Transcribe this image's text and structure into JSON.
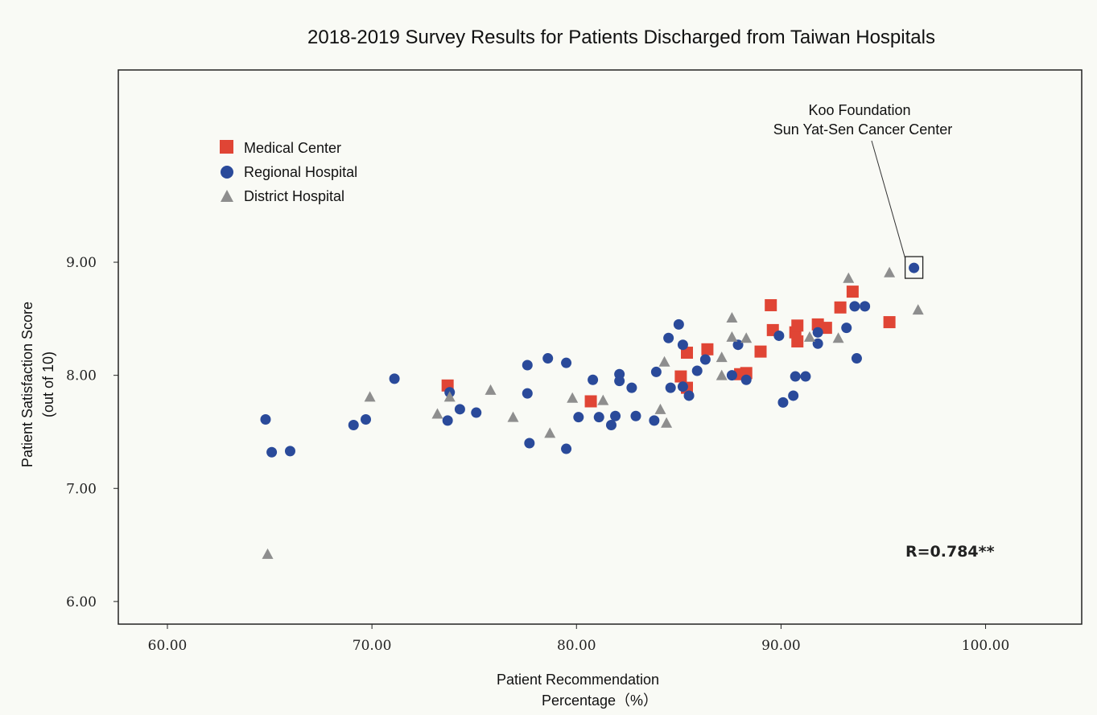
{
  "chart_data": {
    "type": "scatter",
    "title": "2018-2019 Survey Results for Patients Discharged from Taiwan Hospitals",
    "xlabel_line1": "Patient Recommendation",
    "xlabel_line2": "Percentage（%）",
    "ylabel_line1": "Patient Satisfaction Score",
    "ylabel_line2": "(out of 10)",
    "xlim": [
      57.6,
      104.7
    ],
    "ylim": [
      5.8,
      10.7
    ],
    "x_ticks": [
      60,
      70,
      80,
      90,
      100
    ],
    "x_tick_labels": [
      "60.00",
      "70.00",
      "80.00",
      "90.00",
      "100.00"
    ],
    "y_ticks": [
      6,
      7,
      8,
      9
    ],
    "y_tick_labels": [
      "6.00",
      "7.00",
      "8.00",
      "9.00"
    ],
    "grid": false,
    "legend_position": "top-left",
    "annotation": {
      "line1": "Koo Foundation",
      "line2": "Sun Yat-Sen Cancer Center",
      "point": [
        96.5,
        8.95
      ]
    },
    "r_value": "R=0.784**",
    "series": [
      {
        "name": "Medical Center",
        "marker": "square",
        "color": "#e04535",
        "points": [
          [
            73.7,
            7.91
          ],
          [
            80.7,
            7.77
          ],
          [
            85.1,
            7.99
          ],
          [
            85.4,
            8.2
          ],
          [
            85.4,
            7.89
          ],
          [
            86.4,
            8.23
          ],
          [
            88.0,
            8.01
          ],
          [
            88.3,
            8.02
          ],
          [
            89.0,
            8.21
          ],
          [
            89.5,
            8.62
          ],
          [
            89.6,
            8.4
          ],
          [
            90.7,
            8.38
          ],
          [
            90.8,
            8.3
          ],
          [
            90.8,
            8.44
          ],
          [
            91.8,
            8.45
          ],
          [
            92.2,
            8.42
          ],
          [
            92.9,
            8.6
          ],
          [
            93.5,
            8.74
          ],
          [
            95.3,
            8.47
          ]
        ]
      },
      {
        "name": "Regional Hospital",
        "marker": "circle",
        "color": "#2a4a9a",
        "points": [
          [
            64.8,
            7.61
          ],
          [
            65.1,
            7.32
          ],
          [
            66.0,
            7.33
          ],
          [
            69.1,
            7.56
          ],
          [
            69.7,
            7.61
          ],
          [
            71.1,
            7.97
          ],
          [
            73.7,
            7.6
          ],
          [
            73.8,
            7.85
          ],
          [
            74.3,
            7.7
          ],
          [
            75.1,
            7.67
          ],
          [
            77.6,
            8.09
          ],
          [
            77.6,
            7.84
          ],
          [
            77.7,
            7.4
          ],
          [
            78.6,
            8.15
          ],
          [
            79.5,
            8.11
          ],
          [
            79.5,
            7.35
          ],
          [
            80.1,
            7.63
          ],
          [
            80.8,
            7.96
          ],
          [
            81.1,
            7.63
          ],
          [
            81.7,
            7.56
          ],
          [
            81.9,
            7.64
          ],
          [
            82.1,
            8.01
          ],
          [
            82.1,
            7.95
          ],
          [
            82.7,
            7.89
          ],
          [
            82.9,
            7.64
          ],
          [
            83.8,
            7.6
          ],
          [
            83.9,
            8.03
          ],
          [
            84.5,
            8.33
          ],
          [
            84.6,
            7.89
          ],
          [
            85.0,
            8.45
          ],
          [
            85.2,
            8.27
          ],
          [
            85.2,
            7.9
          ],
          [
            85.5,
            7.82
          ],
          [
            85.9,
            8.04
          ],
          [
            86.3,
            8.14
          ],
          [
            87.6,
            8.0
          ],
          [
            87.9,
            8.27
          ],
          [
            88.3,
            7.96
          ],
          [
            89.9,
            8.35
          ],
          [
            90.1,
            7.76
          ],
          [
            90.6,
            7.82
          ],
          [
            90.7,
            7.99
          ],
          [
            91.2,
            7.99
          ],
          [
            91.8,
            8.38
          ],
          [
            91.8,
            8.28
          ],
          [
            93.2,
            8.42
          ],
          [
            93.6,
            8.61
          ],
          [
            93.7,
            8.15
          ],
          [
            94.1,
            8.61
          ],
          [
            96.5,
            8.95
          ]
        ]
      },
      {
        "name": "District Hospital",
        "marker": "triangle",
        "color": "#8e8e8e",
        "points": [
          [
            64.9,
            6.42
          ],
          [
            69.9,
            7.81
          ],
          [
            73.2,
            7.66
          ],
          [
            73.8,
            7.81
          ],
          [
            75.8,
            7.87
          ],
          [
            76.9,
            7.63
          ],
          [
            78.7,
            7.49
          ],
          [
            79.8,
            7.8
          ],
          [
            81.3,
            7.78
          ],
          [
            84.1,
            7.7
          ],
          [
            84.3,
            8.12
          ],
          [
            84.4,
            7.58
          ],
          [
            87.1,
            8.0
          ],
          [
            87.1,
            8.16
          ],
          [
            87.6,
            8.34
          ],
          [
            87.6,
            8.51
          ],
          [
            88.3,
            8.33
          ],
          [
            91.4,
            8.34
          ],
          [
            92.8,
            8.33
          ],
          [
            93.3,
            8.86
          ],
          [
            95.3,
            8.91
          ],
          [
            96.7,
            8.58
          ]
        ]
      }
    ]
  }
}
